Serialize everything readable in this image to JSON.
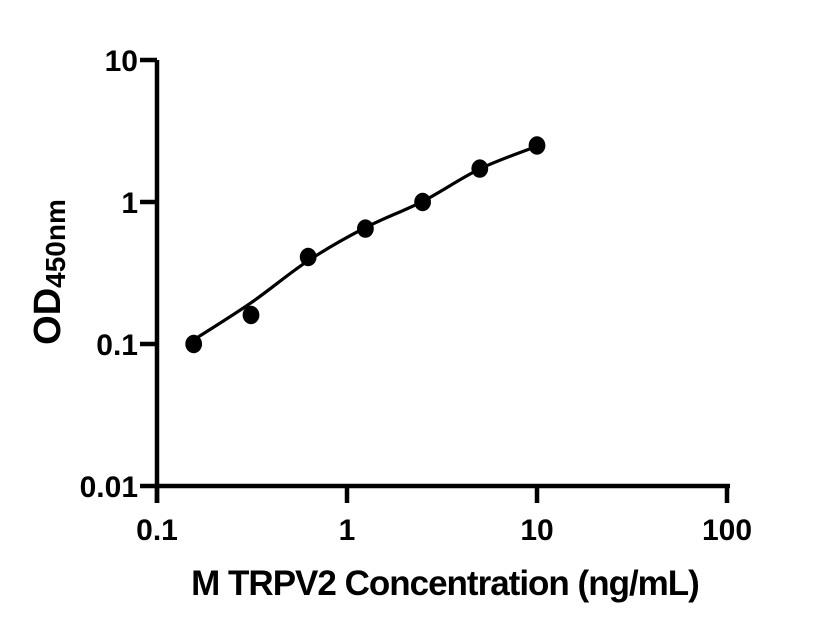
{
  "figure": {
    "background_color": "#ffffff",
    "ink_color": "#000000"
  },
  "chart_data": {
    "type": "scatter",
    "title": "",
    "xlabel": "M TRPV2 Concentration (ng/mL)",
    "ylabel_main": "OD",
    "ylabel_sub": "450nm",
    "x_scale": "log",
    "y_scale": "log",
    "xlim": [
      0.1,
      100
    ],
    "ylim": [
      0.01,
      10
    ],
    "x_ticks": [
      0.1,
      1,
      10,
      100
    ],
    "x_tick_labels": [
      "0.1",
      "1",
      "10",
      "100"
    ],
    "y_ticks": [
      10,
      1,
      0.1,
      0.01
    ],
    "y_tick_labels": [
      "10",
      "1",
      "0.1",
      "0.01"
    ],
    "grid": false,
    "legend": false,
    "marker_color": "#000000",
    "line_color": "#000000",
    "series": [
      {
        "name": "M TRPV2 standard points",
        "type": "scatter",
        "x": [
          0.156,
          0.3125,
          0.625,
          1.25,
          2.5,
          5,
          10
        ],
        "y": [
          0.1,
          0.16,
          0.41,
          0.65,
          1.0,
          1.72,
          2.5
        ]
      },
      {
        "name": "fitted curve",
        "type": "line",
        "x": [
          0.156,
          0.3125,
          0.625,
          1.25,
          2.5,
          5,
          10
        ],
        "y": [
          0.107,
          0.195,
          0.386,
          0.66,
          1.01,
          1.71,
          2.47
        ]
      }
    ]
  }
}
